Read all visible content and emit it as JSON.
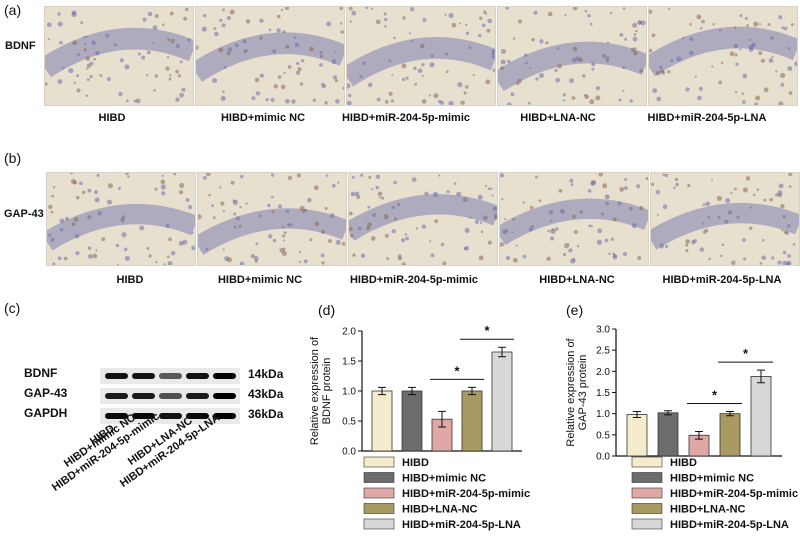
{
  "panels": {
    "a": {
      "letter": "(a)",
      "row_label": "BDNF",
      "captions": [
        "HIBD",
        "HIBD+mimic NC",
        "HIBD+miR-204-5p-mimic",
        "HIBD+LNA-NC",
        "HIBD+miR-204-5p-LNA"
      ]
    },
    "b": {
      "letter": "(b)",
      "row_label": "GAP-43",
      "captions": [
        "HIBD",
        "HIBD+mimic NC",
        "HIBD+miR-204-5p-mimic",
        "HIBD+LNA-NC",
        "HIBD+miR-204-5p-LNA"
      ]
    },
    "c": {
      "letter": "(c)",
      "proteins": [
        "BDNF",
        "GAP-43",
        "GAPDH"
      ],
      "sizes": [
        "14kDa",
        "43kDa",
        "36kDa"
      ],
      "lanes": [
        "HIBD",
        "HIBD+mimic NC",
        "HIBD+miR-204-5p-mimic",
        "HIBD+LNA-NC",
        "HIBD+miR-204-5p-LNA"
      ]
    },
    "d": {
      "letter": "(d)"
    },
    "e": {
      "letter": "(e)"
    }
  },
  "colors": {
    "HIBD": "#f4eccb",
    "HIBD+mimic NC": "#6d6d6d",
    "HIBD+miR-204-5p-mimic": "#e0a7a7",
    "HIBD+LNA-NC": "#a89a62",
    "HIBD+miR-204-5p-LNA": "#d8d8d8"
  },
  "chart_data": [
    {
      "type": "bar",
      "categories": [
        "HIBD",
        "HIBD+mimic NC",
        "HIBD+miR-204-5p-mimic",
        "HIBD+LNA-NC",
        "HIBD+miR-204-5p-LNA"
      ],
      "values": [
        1.0,
        1.0,
        0.53,
        1.0,
        1.65
      ],
      "errors": [
        0.06,
        0.06,
        0.13,
        0.06,
        0.08
      ],
      "ylabel": "Relative expression of BDNF protein",
      "ylim": [
        0,
        2.0
      ],
      "yticks": [
        "0.0",
        "0.5",
        "1.0",
        "1.5",
        "2.0"
      ],
      "significance": [
        {
          "from": 2,
          "to": 3,
          "label": "*"
        },
        {
          "from": 3,
          "to": 4,
          "label": "*"
        }
      ],
      "legend": [
        "HIBD",
        "HIBD+mimic NC",
        "HIBD+miR-204-5p-mimic",
        "HIBD+LNA-NC",
        "HIBD+miR-204-5p-LNA"
      ],
      "legend_position": "bottom"
    },
    {
      "type": "bar",
      "categories": [
        "HIBD",
        "HIBD+mimic NC",
        "HIBD+miR-204-5p-mimic",
        "HIBD+LNA-NC",
        "HIBD+miR-204-5p-LNA"
      ],
      "values": [
        0.98,
        1.02,
        0.49,
        1.0,
        1.88
      ],
      "errors": [
        0.07,
        0.05,
        0.09,
        0.05,
        0.15
      ],
      "ylabel": "Relative expression of GAP-43 protein",
      "ylim": [
        0,
        3.0
      ],
      "yticks": [
        "0.0",
        "0.5",
        "1.0",
        "1.5",
        "2.0",
        "2.5",
        "3.0"
      ],
      "significance": [
        {
          "from": 2,
          "to": 3,
          "label": "*"
        },
        {
          "from": 3,
          "to": 4,
          "label": "*"
        }
      ],
      "legend": [
        "HIBD",
        "HIBD+mimic NC",
        "HIBD+miR-204-5p-mimic",
        "HIBD+LNA-NC",
        "HIBD+miR-204-5p-LNA"
      ],
      "legend_position": "bottom"
    }
  ]
}
